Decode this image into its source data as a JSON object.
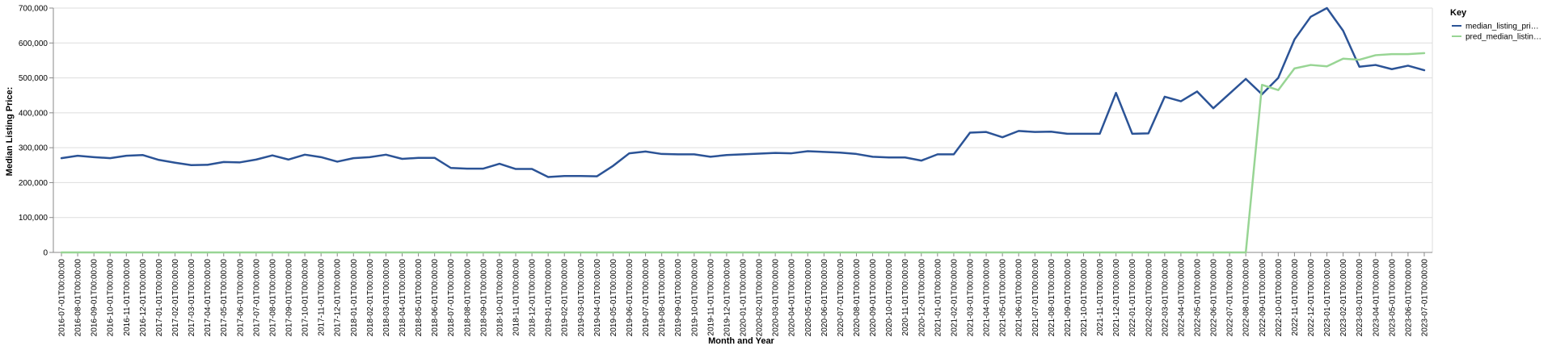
{
  "chart_data": {
    "type": "line",
    "xlabel": "Month and Year",
    "ylabel": "Median Listing Price:",
    "ylim": [
      0,
      700000
    ],
    "yticks": [
      "0",
      "100,000",
      "200,000",
      "300,000",
      "400,000",
      "500,000",
      "600,000",
      "700,000"
    ],
    "grid": true,
    "legend": {
      "title": "Key",
      "position": "top-right"
    },
    "x": [
      "2016-07-01T00:00:00",
      "2016-08-01T00:00:00",
      "2016-09-01T00:00:00",
      "2016-10-01T00:00:00",
      "2016-11-01T00:00:00",
      "2016-12-01T00:00:00",
      "2017-01-01T00:00:00",
      "2017-02-01T00:00:00",
      "2017-03-01T00:00:00",
      "2017-04-01T00:00:00",
      "2017-05-01T00:00:00",
      "2017-06-01T00:00:00",
      "2017-07-01T00:00:00",
      "2017-08-01T00:00:00",
      "2017-09-01T00:00:00",
      "2017-10-01T00:00:00",
      "2017-11-01T00:00:00",
      "2017-12-01T00:00:00",
      "2018-01-01T00:00:00",
      "2018-02-01T00:00:00",
      "2018-03-01T00:00:00",
      "2018-04-01T00:00:00",
      "2018-05-01T00:00:00",
      "2018-06-01T00:00:00",
      "2018-07-01T00:00:00",
      "2018-08-01T00:00:00",
      "2018-09-01T00:00:00",
      "2018-10-01T00:00:00",
      "2018-11-01T00:00:00",
      "2018-12-01T00:00:00",
      "2019-01-01T00:00:00",
      "2019-02-01T00:00:00",
      "2019-03-01T00:00:00",
      "2019-04-01T00:00:00",
      "2019-05-01T00:00:00",
      "2019-06-01T00:00:00",
      "2019-07-01T00:00:00",
      "2019-08-01T00:00:00",
      "2019-09-01T00:00:00",
      "2019-10-01T00:00:00",
      "2019-11-01T00:00:00",
      "2019-12-01T00:00:00",
      "2020-01-01T00:00:00",
      "2020-02-01T00:00:00",
      "2020-03-01T00:00:00",
      "2020-04-01T00:00:00",
      "2020-05-01T00:00:00",
      "2020-06-01T00:00:00",
      "2020-07-01T00:00:00",
      "2020-08-01T00:00:00",
      "2020-09-01T00:00:00",
      "2020-10-01T00:00:00",
      "2020-11-01T00:00:00",
      "2020-12-01T00:00:00",
      "2021-01-01T00:00:00",
      "2021-02-01T00:00:00",
      "2021-03-01T00:00:00",
      "2021-04-01T00:00:00",
      "2021-05-01T00:00:00",
      "2021-06-01T00:00:00",
      "2021-07-01T00:00:00",
      "2021-08-01T00:00:00",
      "2021-09-01T00:00:00",
      "2021-10-01T00:00:00",
      "2021-11-01T00:00:00",
      "2021-12-01T00:00:00",
      "2022-01-01T00:00:00",
      "2022-02-01T00:00:00",
      "2022-03-01T00:00:00",
      "2022-04-01T00:00:00",
      "2022-05-01T00:00:00",
      "2022-06-01T00:00:00",
      "2022-07-01T00:00:00",
      "2022-08-01T00:00:00",
      "2022-09-01T00:00:00",
      "2022-10-01T00:00:00",
      "2022-11-01T00:00:00",
      "2022-12-01T00:00:00",
      "2023-01-01T00:00:00",
      "2023-02-01T00:00:00",
      "2023-03-01T00:00:00",
      "2023-04-01T00:00:00",
      "2023-05-01T00:00:00",
      "2023-06-01T00:00:00",
      "2023-07-01T00:00:00"
    ],
    "series": [
      {
        "name": "median_listing_pri…",
        "color": "#2b5396",
        "values": [
          270000,
          277000,
          273000,
          270000,
          277000,
          279000,
          265000,
          257000,
          250000,
          251000,
          259000,
          258000,
          266000,
          278000,
          266000,
          280000,
          273000,
          260000,
          270000,
          273000,
          280000,
          268000,
          271000,
          271000,
          242000,
          240000,
          240000,
          254000,
          239000,
          239000,
          216000,
          219000,
          219000,
          218000,
          248000,
          284000,
          289000,
          282000,
          281000,
          281000,
          274000,
          279000,
          281000,
          283000,
          285000,
          284000,
          290000,
          288000,
          286000,
          282000,
          274000,
          272000,
          272000,
          263000,
          281000,
          281000,
          343000,
          345000,
          330000,
          348000,
          345000,
          346000,
          340000,
          340000,
          340000,
          457000,
          340000,
          341000,
          446000,
          433000,
          461000,
          413000,
          455000,
          497000,
          453000,
          500000,
          610000,
          675000,
          700000,
          635000,
          532000,
          537000,
          525000,
          535000,
          522000
        ]
      },
      {
        "name": "pred_median_listin…",
        "color": "#98d594",
        "values": [
          0,
          0,
          0,
          0,
          0,
          0,
          0,
          0,
          0,
          0,
          0,
          0,
          0,
          0,
          0,
          0,
          0,
          0,
          0,
          0,
          0,
          0,
          0,
          0,
          0,
          0,
          0,
          0,
          0,
          0,
          0,
          0,
          0,
          0,
          0,
          0,
          0,
          0,
          0,
          0,
          0,
          0,
          0,
          0,
          0,
          0,
          0,
          0,
          0,
          0,
          0,
          0,
          0,
          0,
          0,
          0,
          0,
          0,
          0,
          0,
          0,
          0,
          0,
          0,
          0,
          0,
          0,
          0,
          0,
          0,
          0,
          0,
          0,
          0,
          480000,
          465000,
          527000,
          537000,
          533000,
          555000,
          552000,
          565000,
          568000,
          568000,
          571000
        ]
      }
    ]
  }
}
